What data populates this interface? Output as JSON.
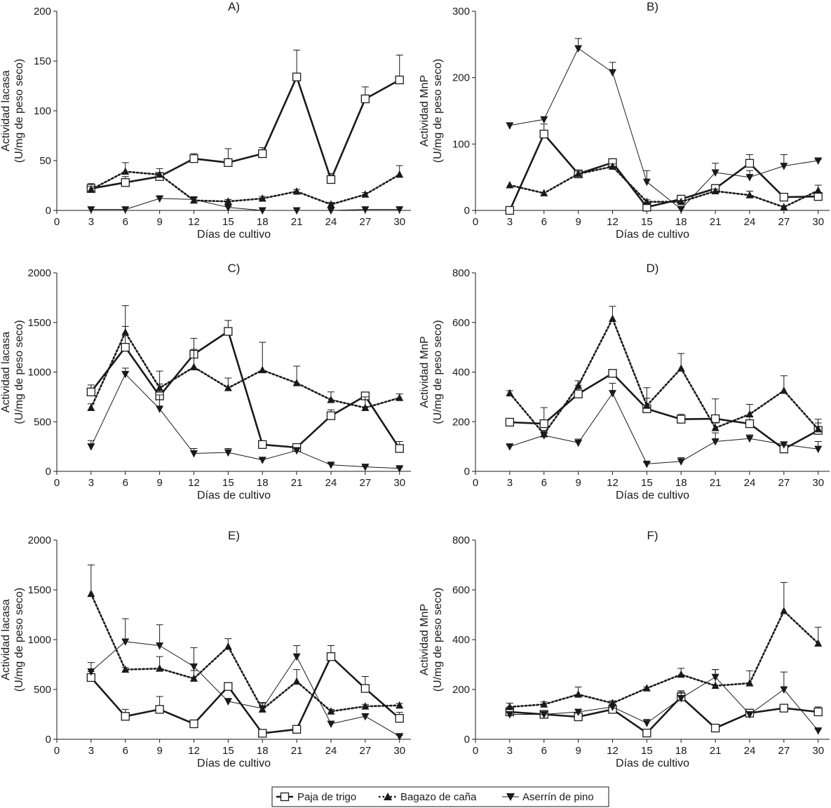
{
  "legend": {
    "items": [
      {
        "label": "Paja de trigo",
        "marker": "square-open",
        "line": "solid-thick"
      },
      {
        "label": "Bagazo de caña",
        "marker": "triangle-up",
        "line": "dotted"
      },
      {
        "label": "Aserrín de pino",
        "marker": "triangle-down",
        "line": "solid-thin"
      }
    ]
  },
  "chart_data": [
    {
      "type": "line",
      "title": "A)",
      "xlabel": "Días de cultivo",
      "ylabel": [
        "Actividad lacasa",
        "(U/mg de peso seco)"
      ],
      "x": [
        3,
        6,
        9,
        12,
        15,
        18,
        21,
        24,
        27,
        30
      ],
      "xlim": [
        0,
        31
      ],
      "ylim": [
        0,
        200
      ],
      "xticks": [
        0,
        3,
        6,
        9,
        12,
        15,
        18,
        21,
        24,
        27,
        30
      ],
      "yticks": [
        0,
        50,
        100,
        150,
        200
      ],
      "series": [
        {
          "name": "Paja de trigo",
          "values": [
            22,
            28,
            34,
            52,
            48,
            57,
            134,
            31,
            112,
            131
          ],
          "errors": [
            5,
            6,
            4,
            5,
            14,
            6,
            27,
            6,
            12,
            25
          ]
        },
        {
          "name": "Bagazo de caña",
          "values": [
            21,
            39,
            36,
            10,
            9,
            12,
            19,
            6,
            16,
            36
          ],
          "errors": [
            3,
            9,
            6,
            3,
            2,
            2,
            2,
            2,
            2,
            9
          ]
        },
        {
          "name": "Aserrín de pino",
          "values": [
            1,
            1,
            12,
            11,
            3,
            0,
            0,
            0,
            1,
            1
          ],
          "errors": [
            0,
            0,
            2,
            2,
            1,
            0,
            0,
            0,
            0,
            0
          ]
        }
      ]
    },
    {
      "type": "line",
      "title": "B)",
      "xlabel": "Días de cultivo",
      "ylabel": [
        "Actividad MnP",
        "(U/mg de peso seco)"
      ],
      "x": [
        3,
        6,
        9,
        12,
        15,
        18,
        21,
        24,
        27,
        30
      ],
      "xlim": [
        0,
        31
      ],
      "ylim": [
        0,
        300
      ],
      "xticks": [
        0,
        3,
        6,
        9,
        12,
        15,
        18,
        21,
        24,
        27,
        30
      ],
      "yticks": [
        0,
        100,
        200,
        300
      ],
      "series": [
        {
          "name": "Paja de trigo",
          "values": [
            0,
            115,
            55,
            72,
            5,
            17,
            33,
            71,
            20,
            21
          ],
          "errors": [
            0,
            15,
            4,
            5,
            4,
            3,
            6,
            13,
            5,
            3
          ]
        },
        {
          "name": "Bagazo de caña",
          "values": [
            38,
            26,
            55,
            66,
            13,
            13,
            29,
            23,
            5,
            30
          ],
          "errors": [
            0,
            0,
            4,
            4,
            3,
            2,
            3,
            6,
            2,
            8
          ]
        },
        {
          "name": "Aserrín de pino",
          "values": [
            128,
            137,
            244,
            208,
            43,
            2,
            57,
            50,
            67,
            75
          ],
          "errors": [
            4,
            4,
            15,
            15,
            17,
            2,
            14,
            10,
            17,
            2
          ]
        }
      ]
    },
    {
      "type": "line",
      "title": "C)",
      "xlabel": "Días de cultivo",
      "ylabel": [
        "Actividad lacasa",
        "(U/mg de peso seco)"
      ],
      "x": [
        3,
        6,
        9,
        12,
        15,
        18,
        21,
        24,
        27,
        30
      ],
      "xlim": [
        0,
        31
      ],
      "ylim": [
        0,
        2000
      ],
      "xticks": [
        0,
        3,
        6,
        9,
        12,
        15,
        18,
        21,
        24,
        27,
        30
      ],
      "yticks": [
        0,
        500,
        1000,
        1500,
        2000
      ],
      "series": [
        {
          "name": "Paja de trigo",
          "values": [
            800,
            1250,
            760,
            1180,
            1410,
            270,
            240,
            560,
            760,
            230
          ],
          "errors": [
            70,
            210,
            120,
            50,
            110,
            20,
            20,
            60,
            30,
            70
          ]
        },
        {
          "name": "Bagazo de caña",
          "values": [
            640,
            1400,
            840,
            1050,
            840,
            1020,
            890,
            720,
            640,
            740
          ],
          "errors": [
            40,
            270,
            170,
            290,
            100,
            280,
            170,
            80,
            110,
            40
          ]
        },
        {
          "name": "Aserrín de pino",
          "values": [
            250,
            980,
            630,
            180,
            190,
            115,
            210,
            65,
            45,
            30
          ],
          "errors": [
            60,
            60,
            140,
            50,
            40,
            10,
            30,
            10,
            10,
            10
          ]
        }
      ]
    },
    {
      "type": "line",
      "title": "D)",
      "xlabel": "Días de cultivo",
      "ylabel": [
        "Actividad MnP",
        "(U/mg de peso seco)"
      ],
      "x": [
        3,
        6,
        9,
        12,
        15,
        18,
        21,
        24,
        27,
        30
      ],
      "xlim": [
        0,
        31
      ],
      "ylim": [
        0,
        800
      ],
      "xticks": [
        0,
        3,
        6,
        9,
        12,
        15,
        18,
        21,
        24,
        27,
        30
      ],
      "yticks": [
        0,
        200,
        400,
        600,
        800
      ],
      "series": [
        {
          "name": "Paja de trigo",
          "values": [
            198,
            192,
            312,
            395,
            252,
            210,
            212,
            192,
            90,
            165
          ],
          "errors": [
            10,
            65,
            35,
            10,
            85,
            20,
            80,
            30,
            15,
            30
          ]
        },
        {
          "name": "Bagazo de caña",
          "values": [
            315,
            150,
            345,
            615,
            265,
            415,
            175,
            230,
            325,
            170
          ],
          "errors": [
            10,
            15,
            20,
            50,
            30,
            60,
            20,
            40,
            60,
            40
          ]
        },
        {
          "name": "Aserrín de pino",
          "values": [
            100,
            145,
            115,
            315,
            30,
            40,
            120,
            132,
            108,
            90
          ],
          "errors": [
            5,
            15,
            15,
            40,
            5,
            15,
            35,
            15,
            10,
            30
          ]
        }
      ]
    },
    {
      "type": "line",
      "title": "E)",
      "xlabel": "Días de cultivo",
      "ylabel": [
        "Actividad lacasa",
        "(U/mg de peso seco)"
      ],
      "x": [
        3,
        6,
        9,
        12,
        15,
        18,
        21,
        24,
        27,
        30
      ],
      "xlim": [
        0,
        31
      ],
      "ylim": [
        0,
        2000
      ],
      "xticks": [
        0,
        3,
        6,
        9,
        12,
        15,
        18,
        21,
        24,
        27,
        30
      ],
      "yticks": [
        0,
        500,
        1000,
        1500,
        2000
      ],
      "series": [
        {
          "name": "Paja de trigo",
          "values": [
            620,
            230,
            300,
            155,
            530,
            60,
            100,
            830,
            510,
            210
          ],
          "errors": [
            60,
            70,
            130,
            20,
            20,
            20,
            20,
            110,
            120,
            60
          ]
        },
        {
          "name": "Bagazo de caña",
          "values": [
            1460,
            700,
            710,
            610,
            930,
            300,
            580,
            280,
            330,
            340
          ],
          "errors": [
            290,
            20,
            120,
            80,
            80,
            60,
            120,
            20,
            20,
            20
          ]
        },
        {
          "name": "Aserrín de pino",
          "values": [
            680,
            980,
            940,
            730,
            380,
            310,
            830,
            155,
            230,
            30
          ],
          "errors": [
            90,
            230,
            210,
            190,
            30,
            60,
            110,
            20,
            20,
            10
          ]
        }
      ]
    },
    {
      "type": "line",
      "title": "F)",
      "xlabel": "Días de cultivo",
      "ylabel": [
        "Actividad MnP",
        "(U/mg de peso seco)"
      ],
      "x": [
        3,
        6,
        9,
        12,
        15,
        18,
        21,
        24,
        27,
        30
      ],
      "xlim": [
        0,
        31
      ],
      "ylim": [
        0,
        800
      ],
      "xticks": [
        0,
        3,
        6,
        9,
        12,
        15,
        18,
        21,
        24,
        27,
        30
      ],
      "yticks": [
        0,
        200,
        400,
        600,
        800
      ],
      "series": [
        {
          "name": "Paja de trigo",
          "values": [
            110,
            100,
            90,
            120,
            25,
            170,
            45,
            105,
            125,
            110
          ],
          "errors": [
            20,
            15,
            10,
            20,
            15,
            20,
            10,
            10,
            15,
            20
          ]
        },
        {
          "name": "Bagazo de caña",
          "values": [
            130,
            140,
            180,
            145,
            205,
            260,
            215,
            225,
            515,
            385
          ],
          "errors": [
            15,
            10,
            30,
            10,
            5,
            25,
            65,
            50,
            115,
            65
          ]
        },
        {
          "name": "Aserrín de pino",
          "values": [
            100,
            100,
            110,
            130,
            65,
            165,
            250,
            100,
            200,
            35
          ],
          "errors": [
            10,
            10,
            10,
            20,
            15,
            30,
            30,
            10,
            70,
            5
          ]
        }
      ]
    }
  ]
}
